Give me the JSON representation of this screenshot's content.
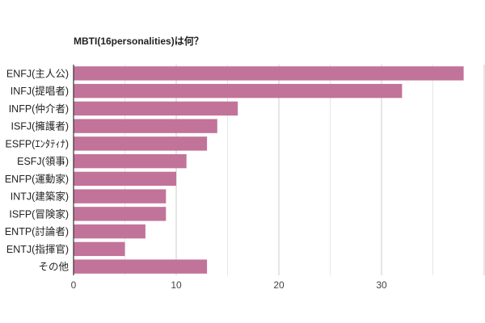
{
  "chart_data": {
    "type": "bar",
    "orientation": "horizontal",
    "title": "MBTI(16personalities)は何？",
    "xlabel": "",
    "ylabel": "",
    "categories": [
      "ENFJ(主人公)",
      "INFJ(提唱者)",
      "INFP(仲介者)",
      "ISFJ(擁護者)",
      "ESFP(ｴﾝﾀﾃｨﾅ)",
      "ESFJ(領事)",
      "ENFP(運動家)",
      "INTJ(建築家)",
      "ISFP(冒険家)",
      "ENTP(討論者)",
      "ENTJ(指揮官)",
      "その他"
    ],
    "values": [
      38,
      32,
      16,
      14,
      13,
      11,
      10,
      9,
      9,
      7,
      5,
      13
    ],
    "xlim": [
      0,
      40
    ],
    "x_ticks": [
      0,
      10,
      20,
      30
    ],
    "x_tick_labels": [
      "0",
      "10",
      "20",
      "30"
    ],
    "minor_gridlines": [
      5,
      15,
      25,
      35
    ],
    "grid": true,
    "legend": "none",
    "bar_color": "#c2739a",
    "grid_color": "#e6e6e6",
    "major_grid_color": "#cccccc",
    "axis_color": "#333333"
  }
}
